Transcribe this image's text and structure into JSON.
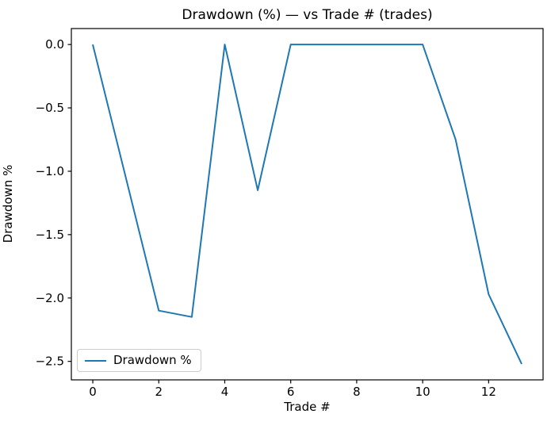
{
  "chart_data": {
    "type": "line",
    "title": "Drawdown (%) — vs Trade # (trades)",
    "xlabel": "Trade #",
    "ylabel": "Drawdown %",
    "x": [
      0,
      1,
      2,
      3,
      4,
      5,
      6,
      7,
      8,
      9,
      10,
      11,
      12,
      13
    ],
    "series": [
      {
        "name": "Drawdown %",
        "color": "#1f77b4",
        "values": [
          0.0,
          -1.05,
          -2.1,
          -2.15,
          0.0,
          -1.15,
          0.0,
          0.0,
          0.0,
          0.0,
          0.0,
          -0.75,
          -1.97,
          -2.52
        ]
      }
    ],
    "xticks": [
      0,
      2,
      4,
      6,
      8,
      10,
      12
    ],
    "ytick_labels": [
      "0.0",
      "−0.5",
      "−1.0",
      "−1.5",
      "−2.0",
      "−2.5"
    ],
    "ytick_values": [
      0.0,
      -0.5,
      -1.0,
      -1.5,
      -2.0,
      -2.5
    ],
    "xlim": [
      -0.65,
      13.65
    ],
    "ylim": [
      -2.646,
      0.126
    ],
    "grid": false,
    "legend": {
      "position": "lower left",
      "entries": [
        "Drawdown %"
      ]
    },
    "colors": {
      "line": "#1f77b4",
      "spine": "#000000",
      "text": "#000000",
      "legend_border": "#cccccc"
    }
  }
}
